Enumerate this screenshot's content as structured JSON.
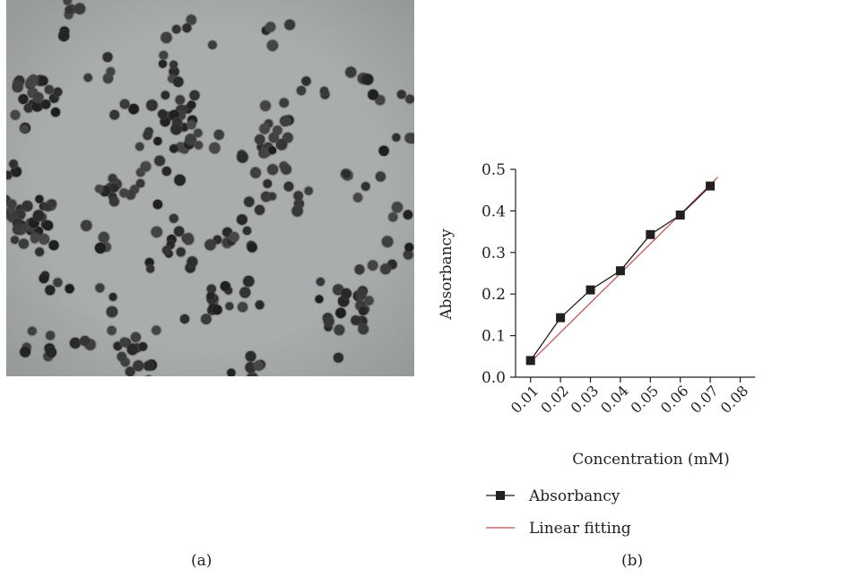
{
  "panels": {
    "a": {
      "caption": "(a)"
    },
    "b": {
      "caption": "(b)"
    }
  },
  "colors": {
    "tem_background": "#a9acad",
    "particle": "#2a2a2a",
    "absorbancy_series": "#231f20",
    "linear_fitting": "#c0504d"
  },
  "chart_data": {
    "type": "line",
    "title": "",
    "xlabel": "Concentration (mM)",
    "ylabel": "Absorbancy",
    "xlim": [
      0.005,
      0.085
    ],
    "ylim": [
      0.0,
      0.5
    ],
    "xticks": [
      "0.01",
      "0.02",
      "0.03",
      "0.04",
      "0.05",
      "0.06",
      "0.07",
      "0.08"
    ],
    "yticks": [
      "0.0",
      "0.1",
      "0.2",
      "0.3",
      "0.4",
      "0.5"
    ],
    "grid": false,
    "legend_position": "bottom-left",
    "series": [
      {
        "name": "Absorbancy",
        "marker": "square",
        "x": [
          0.01,
          0.02,
          0.03,
          0.04,
          0.05,
          0.06,
          0.07
        ],
        "y": [
          0.04,
          0.143,
          0.21,
          0.256,
          0.343,
          0.39,
          0.46
        ]
      },
      {
        "name": "Linear fitting",
        "line_only": true,
        "x": [
          0.0095,
          0.0725
        ],
        "y": [
          0.033,
          0.481
        ]
      }
    ]
  }
}
